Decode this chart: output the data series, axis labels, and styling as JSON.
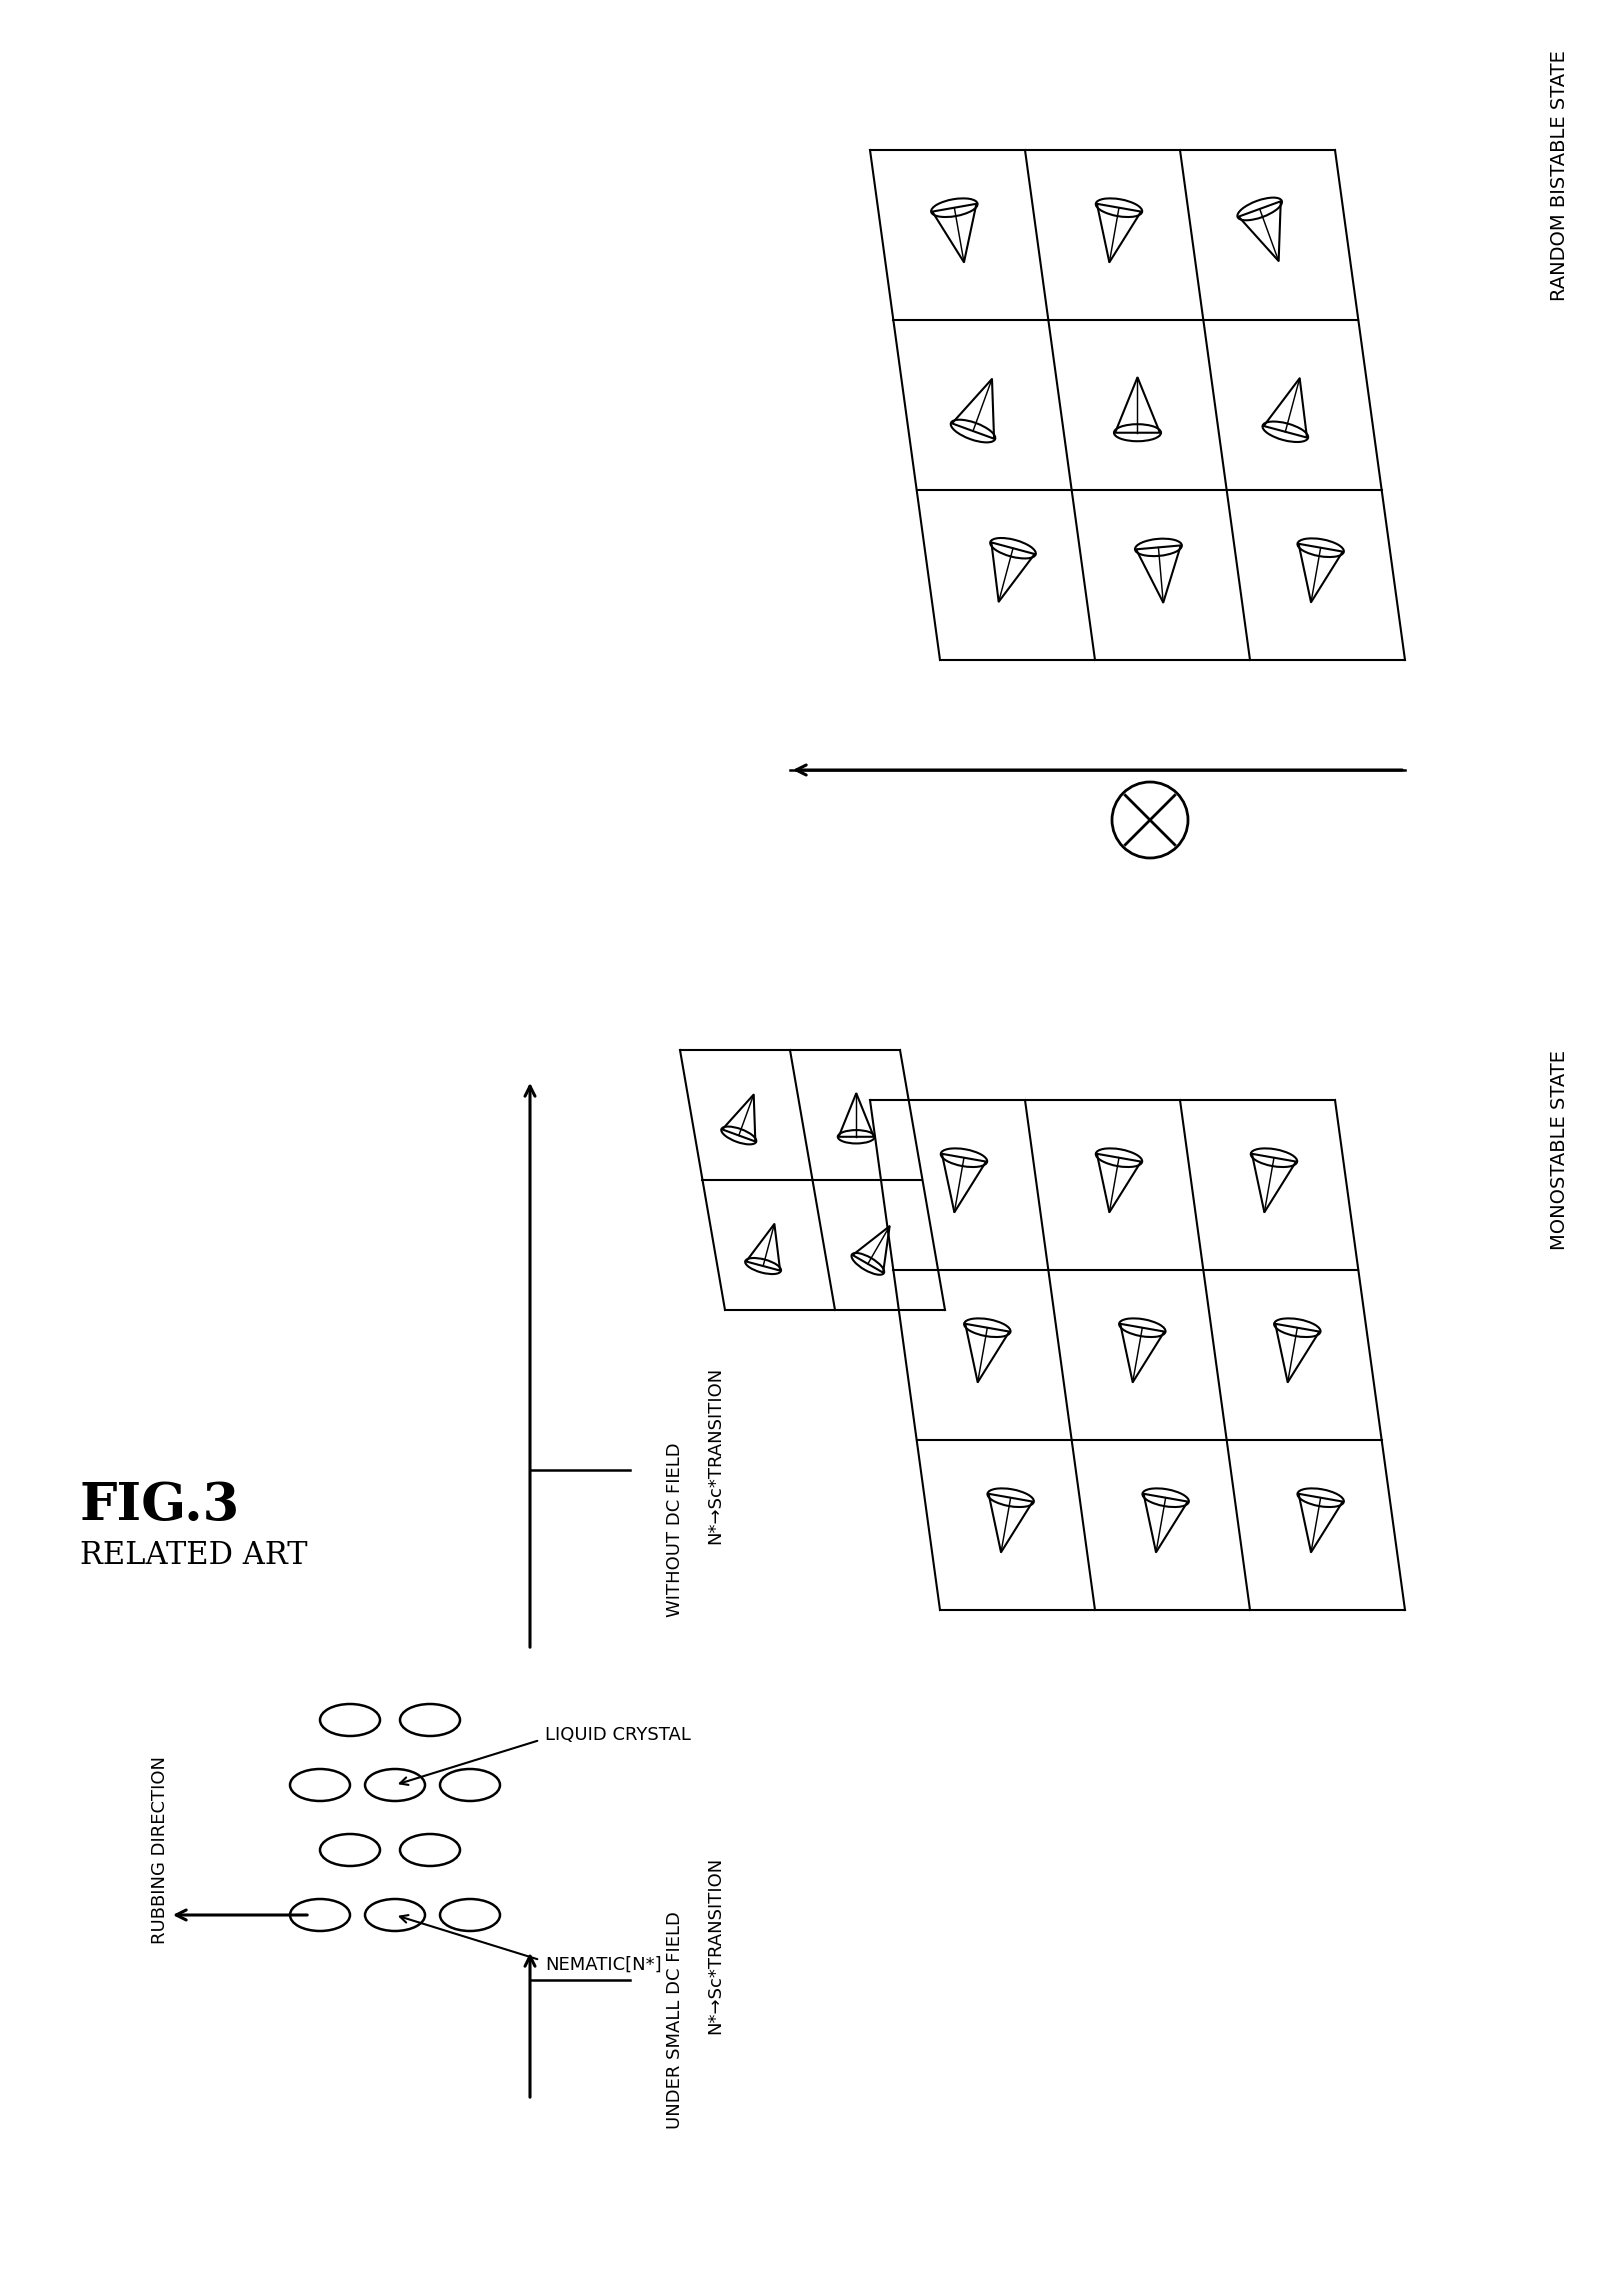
{
  "title": "FIG.3",
  "subtitle": "RELATED ART",
  "background_color": "#ffffff",
  "text_color": "#000000",
  "fig_width": 16.14,
  "fig_height": 22.93,
  "labels": {
    "random_bistable": "RANDOM BISTABLE STATE",
    "monostable": "MONOSTABLE STATE",
    "without_dc": "WITHOUT DC FIELD",
    "transition1": "N*→Sc*TRANSITION",
    "under_small": "UNDER SMALL DC FIELD",
    "transition2": "N*→Sc*TRANSITION",
    "rubbing": "RUBBING DIRECTION",
    "liquid_crystal": "LIQUID CRYSTAL",
    "nematic": "NEMATIC[N*]"
  }
}
